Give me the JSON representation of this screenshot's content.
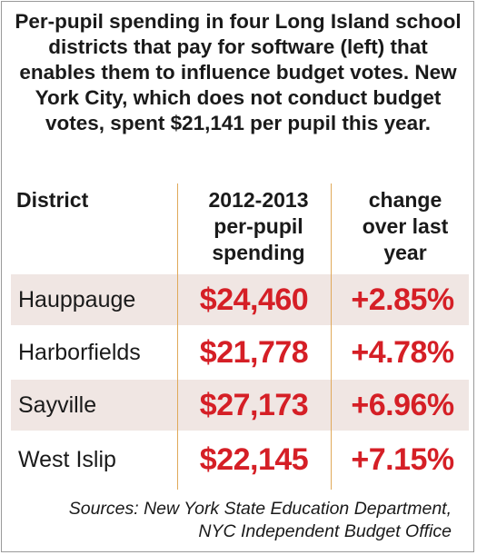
{
  "chart_data": {
    "type": "table",
    "title": "Per-pupil spending in four Long Island school districts that pay for software (left) that enables them to influence budget votes. New York City, which does not conduct budget votes, spent $21,141 per pupil this year.",
    "columns": [
      "District",
      "2012-2013 per-pupil spending",
      "change over last year"
    ],
    "rows": [
      {
        "district": "Hauppauge",
        "spending": "$24,460",
        "change": "+2.85%",
        "spending_value": 24460,
        "change_value": 2.85
      },
      {
        "district": "Harborfields",
        "spending": "$21,778",
        "change": "+4.78%",
        "spending_value": 21778,
        "change_value": 4.78
      },
      {
        "district": "Sayville",
        "spending": "$27,173",
        "change": "+6.96%",
        "spending_value": 27173,
        "change_value": 6.96
      },
      {
        "district": "West Islip",
        "spending": "$22,145",
        "change": "+7.15%",
        "spending_value": 22145,
        "change_value": 7.15
      }
    ],
    "source": "Sources: New York State Education Department, NYC Independent Budget Office"
  },
  "colors": {
    "value_red": "#d51f26",
    "row_shade": "#f0e6e3",
    "divider": "#e0a95a",
    "text": "#1a1a1a"
  },
  "header": {
    "col1": "District",
    "col2_line1": "2012-2013",
    "col2_line2": "per-pupil",
    "col2_line3": "spending",
    "col3_line1": "change",
    "col3_line2": "over last",
    "col3_line3": "year"
  },
  "source_line1": "Sources: New York State Education Department,",
  "source_line2": "NYC Independent Budget Office"
}
